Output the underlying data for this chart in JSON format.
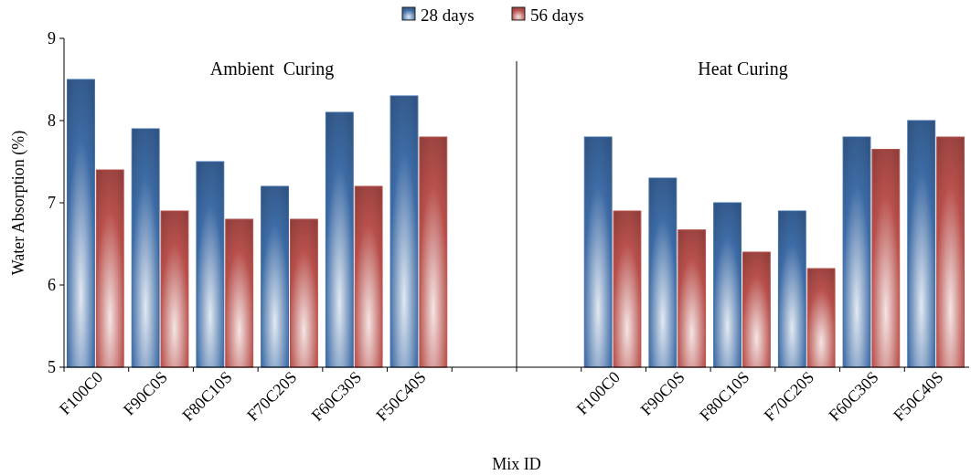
{
  "chart_data": {
    "type": "bar",
    "xlabel": "Mix ID",
    "ylabel": "Water  Absorption (%)",
    "categories": [
      "F100C0",
      "F90C0S",
      "F80C10S",
      "F70C20S",
      "F60C30S",
      "F50C40S",
      null,
      null,
      "F100C0",
      "F90C0S",
      "F80C10S",
      "F70C20S",
      "F60C30S",
      "F50C40S"
    ],
    "series": [
      {
        "name": "28 days",
        "color": "#3d6ba5",
        "values": [
          8.5,
          7.9,
          7.5,
          7.2,
          8.1,
          8.3,
          null,
          null,
          7.8,
          7.3,
          7.0,
          6.9,
          7.8,
          8.0
        ]
      },
      {
        "name": "56 days",
        "color": "#b8504c",
        "values": [
          7.4,
          6.9,
          6.8,
          6.8,
          7.2,
          7.8,
          null,
          null,
          6.9,
          6.67,
          6.4,
          6.2,
          7.65,
          7.8
        ]
      }
    ],
    "ylim": [
      5,
      9
    ],
    "yticks": [
      5,
      6,
      7,
      8,
      9
    ],
    "grid": false,
    "legend": "top",
    "annotations": [
      "Ambient  Curing",
      "Heat Curing"
    ]
  }
}
